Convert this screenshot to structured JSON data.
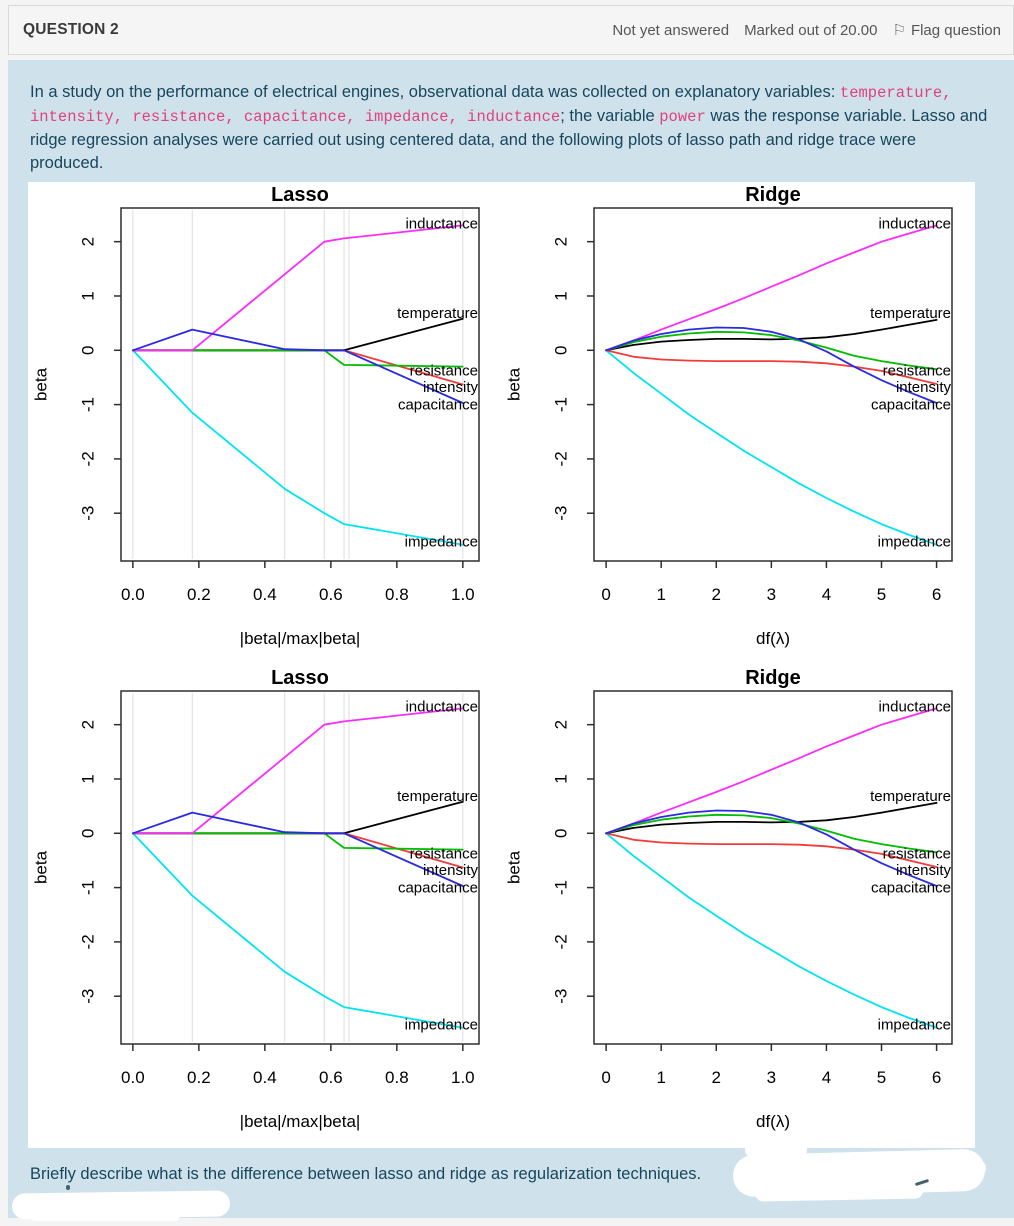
{
  "header": {
    "title": "QUESTION 2",
    "status": "Not yet answered",
    "marks": "Marked out of 20.00",
    "flag": "Flag question",
    "flag_glyph": "⚐"
  },
  "question": {
    "p1": "In a study on the performance of electrical engines, observational data was collected on explanatory variables: ",
    "code_vars": "temperature, intensity, resistance, capacitance, impedance, inductance",
    "p2": "; the variable ",
    "code_power": "power",
    "p3": " was the response variable. Lasso and ridge regression analyses were carried out using centered data, and the following plots of lasso path and ridge trace were produced.",
    "prompt": "Briefly describe what is the difference between lasso and ridge as regularization techniques."
  },
  "colors": {
    "question_bg": "#cfe2ec",
    "question_text": "#17465c",
    "code_pink": "#e0417f",
    "header_bg": "#f5f5f5",
    "grid_gray": "#dcdcdc",
    "axis_dark": "#2e2e2e"
  },
  "chart_data": {
    "layout": "2x2 grid; bottom row repeats the same two plots",
    "panels": [
      "lasso",
      "ridge",
      "lasso",
      "ridge"
    ],
    "defs": {
      "lasso": {
        "type": "line",
        "title": "Lasso",
        "xlabel": "|beta|/max|beta|",
        "ylabel": "beta",
        "xlim": [
          -0.036,
          1.049
        ],
        "ylim": [
          -3.88,
          2.62
        ],
        "xticks": [
          0.0,
          0.2,
          0.4,
          0.6,
          0.8,
          1.0
        ],
        "xtick_labels": [
          "0.0",
          "0.2",
          "0.4",
          "0.6",
          "0.8",
          "1.0"
        ],
        "yticks": [
          -3,
          -2,
          -1,
          0,
          1,
          2
        ],
        "ytick_labels": [
          "-3",
          "-2",
          "-1",
          "0",
          "1",
          "2"
        ],
        "grid": true,
        "vgrid_x": [
          0.0,
          0.18,
          0.46,
          0.58,
          0.64,
          0.655,
          1.0
        ],
        "series": [
          {
            "name": "impedance",
            "color": "#00e4f0",
            "points": [
              [
                0,
                0
              ],
              [
                0.18,
                -1.15
              ],
              [
                0.46,
                -2.55
              ],
              [
                0.58,
                -3.0
              ],
              [
                0.64,
                -3.2
              ],
              [
                1.0,
                -3.58
              ]
            ]
          },
          {
            "name": "intensity",
            "color": "#f23c3c",
            "points": [
              [
                0,
                0
              ],
              [
                0.64,
                0
              ],
              [
                1.0,
                -0.63
              ]
            ]
          },
          {
            "name": "temperature",
            "color": "#000000",
            "points": [
              [
                0,
                0
              ],
              [
                0.64,
                0
              ],
              [
                1.0,
                0.58
              ]
            ]
          },
          {
            "name": "resistance",
            "color": "#00bd00",
            "points": [
              [
                0,
                0
              ],
              [
                0.58,
                0
              ],
              [
                0.64,
                -0.27
              ],
              [
                1.0,
                -0.3
              ]
            ]
          },
          {
            "name": "inductance",
            "color": "#fb2cfb",
            "points": [
              [
                0,
                0
              ],
              [
                0.18,
                0
              ],
              [
                0.58,
                2.0
              ],
              [
                0.64,
                2.06
              ],
              [
                1.0,
                2.3
              ]
            ]
          },
          {
            "name": "capacitance",
            "color": "#2a2ae0",
            "points": [
              [
                0,
                0
              ],
              [
                0.18,
                0.38
              ],
              [
                0.46,
                0.02
              ],
              [
                0.58,
                0
              ],
              [
                0.64,
                0
              ],
              [
                1.0,
                -0.97
              ]
            ]
          }
        ],
        "labels": [
          {
            "text": "inductance",
            "y": 2.33
          },
          {
            "text": "temperature",
            "y": 0.69
          },
          {
            "text": "resistance",
            "y": -0.37
          },
          {
            "text": "intensity",
            "y": -0.68
          },
          {
            "text": "capacitance",
            "y": -1.0
          },
          {
            "text": "impedance",
            "y": -3.52
          }
        ]
      },
      "ridge": {
        "type": "line",
        "title": "Ridge",
        "xlabel": "df(λ)",
        "ylabel": "beta",
        "xlim": [
          -0.22,
          6.28
        ],
        "ylim": [
          -3.88,
          2.62
        ],
        "xticks": [
          0,
          1,
          2,
          3,
          4,
          5,
          6
        ],
        "xtick_labels": [
          "0",
          "1",
          "2",
          "3",
          "4",
          "5",
          "6"
        ],
        "yticks": [
          -3,
          -2,
          -1,
          0,
          1,
          2
        ],
        "ytick_labels": [
          "-3",
          "-2",
          "-1",
          "0",
          "1",
          "2"
        ],
        "grid": false,
        "vgrid_x": [],
        "series": [
          {
            "name": "impedance",
            "color": "#00e4f0",
            "points": [
              [
                0,
                0
              ],
              [
                0.5,
                -0.42
              ],
              [
                1,
                -0.8
              ],
              [
                1.5,
                -1.18
              ],
              [
                2,
                -1.52
              ],
              [
                2.5,
                -1.85
              ],
              [
                3,
                -2.15
              ],
              [
                3.5,
                -2.45
              ],
              [
                4,
                -2.72
              ],
              [
                4.5,
                -2.97
              ],
              [
                5,
                -3.2
              ],
              [
                5.5,
                -3.4
              ],
              [
                6,
                -3.58
              ]
            ]
          },
          {
            "name": "intensity",
            "color": "#f23c3c",
            "points": [
              [
                0,
                0
              ],
              [
                0.5,
                -0.12
              ],
              [
                1,
                -0.17
              ],
              [
                1.5,
                -0.19
              ],
              [
                2,
                -0.2
              ],
              [
                2.5,
                -0.2
              ],
              [
                3,
                -0.2
              ],
              [
                3.5,
                -0.21
              ],
              [
                4,
                -0.24
              ],
              [
                4.5,
                -0.3
              ],
              [
                5,
                -0.38
              ],
              [
                5.5,
                -0.5
              ],
              [
                6,
                -0.62
              ]
            ]
          },
          {
            "name": "temperature",
            "color": "#000000",
            "points": [
              [
                0,
                0
              ],
              [
                0.5,
                0.1
              ],
              [
                1,
                0.16
              ],
              [
                1.5,
                0.19
              ],
              [
                2,
                0.21
              ],
              [
                2.5,
                0.21
              ],
              [
                3,
                0.2
              ],
              [
                3.5,
                0.21
              ],
              [
                4,
                0.24
              ],
              [
                4.5,
                0.3
              ],
              [
                5,
                0.38
              ],
              [
                5.5,
                0.47
              ],
              [
                6,
                0.56
              ]
            ]
          },
          {
            "name": "resistance",
            "color": "#00bd00",
            "points": [
              [
                0,
                0
              ],
              [
                0.5,
                0.15
              ],
              [
                1,
                0.25
              ],
              [
                1.5,
                0.31
              ],
              [
                2,
                0.34
              ],
              [
                2.5,
                0.33
              ],
              [
                3,
                0.28
              ],
              [
                3.5,
                0.18
              ],
              [
                4,
                0.05
              ],
              [
                4.5,
                -0.1
              ],
              [
                5,
                -0.2
              ],
              [
                5.5,
                -0.28
              ],
              [
                6,
                -0.35
              ]
            ]
          },
          {
            "name": "inductance",
            "color": "#fb2cfb",
            "points": [
              [
                0,
                0
              ],
              [
                0.5,
                0.18
              ],
              [
                1,
                0.38
              ],
              [
                1.5,
                0.57
              ],
              [
                2,
                0.76
              ],
              [
                2.5,
                0.96
              ],
              [
                3,
                1.17
              ],
              [
                3.5,
                1.38
              ],
              [
                4,
                1.6
              ],
              [
                4.5,
                1.8
              ],
              [
                5,
                2.0
              ],
              [
                5.5,
                2.15
              ],
              [
                6,
                2.3
              ]
            ]
          },
          {
            "name": "capacitance",
            "color": "#2a2ae0",
            "points": [
              [
                0,
                0
              ],
              [
                0.5,
                0.18
              ],
              [
                1,
                0.3
              ],
              [
                1.5,
                0.38
              ],
              [
                2,
                0.42
              ],
              [
                2.5,
                0.41
              ],
              [
                3,
                0.34
              ],
              [
                3.5,
                0.2
              ],
              [
                4,
                -0.02
              ],
              [
                4.5,
                -0.3
              ],
              [
                5,
                -0.55
              ],
              [
                5.5,
                -0.77
              ],
              [
                6,
                -0.97
              ]
            ]
          }
        ],
        "labels": [
          {
            "text": "inductance",
            "y": 2.33
          },
          {
            "text": "temperature",
            "y": 0.69
          },
          {
            "text": "resistance",
            "y": -0.37
          },
          {
            "text": "intensity",
            "y": -0.68
          },
          {
            "text": "capacitance",
            "y": -1.0
          },
          {
            "text": "impedance",
            "y": -3.52
          }
        ]
      }
    }
  }
}
